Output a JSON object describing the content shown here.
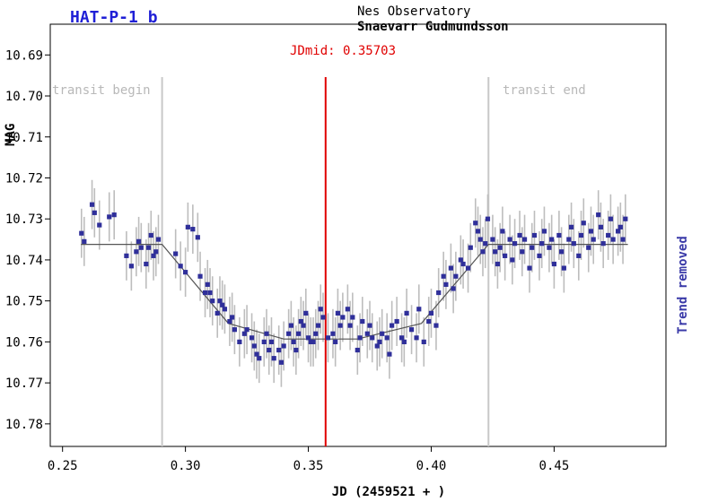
{
  "header": {
    "target": "HAT-P-1 b",
    "observatory": "Nes Observatory",
    "observer": "Snaevarr Gudmundsson",
    "jdmid_label": "JDmid: 0.35703",
    "transit_begin_label": "transit begin",
    "transit_end_label": "transit end",
    "trend_label": "Trend removed"
  },
  "colors": {
    "target": "#1f1fd6",
    "points": "#2f2f9a",
    "errorbars": "#bdbdbd",
    "model": "#555555",
    "jdmid": "#e00000",
    "transit_lines": "#c8c8c8",
    "transit_text": "#b8b8b8",
    "trend": "#3a3aa8"
  },
  "chart_data": {
    "type": "scatter",
    "xlabel": "JD (2459521 + )",
    "ylabel": "MAG",
    "xlim": [
      0.245,
      0.4955
    ],
    "ylim": [
      10.6825,
      10.7855
    ],
    "y_inverted": true,
    "xticks": [
      0.25,
      0.3,
      0.35,
      0.4,
      0.45
    ],
    "xtick_labels": [
      "0.25",
      "0.30",
      "0.35",
      "0.40",
      "0.45"
    ],
    "yticks": [
      10.69,
      10.7,
      10.71,
      10.72,
      10.73,
      10.74,
      10.75,
      10.76,
      10.77,
      10.78
    ],
    "ytick_labels": [
      "10.69",
      "10.70",
      "10.71",
      "10.72",
      "10.73",
      "10.74",
      "10.75",
      "10.76",
      "10.77",
      "10.78"
    ],
    "jd_mid": 0.35703,
    "transit_begin": 0.2905,
    "transit_end": 0.4233,
    "errorbar": 0.006,
    "model_line": {
      "x": [
        0.2575,
        0.2905,
        0.3175,
        0.34,
        0.37,
        0.396,
        0.4233,
        0.48
      ],
      "y": [
        10.7362,
        10.7362,
        10.7555,
        10.7593,
        10.7593,
        10.7555,
        10.7362,
        10.7362
      ]
    },
    "series": [
      {
        "x": [
          0.2577,
          0.2588,
          0.262,
          0.263,
          0.265,
          0.269,
          0.271,
          0.276,
          0.278,
          0.28,
          0.281,
          0.282,
          0.284,
          0.285,
          0.286,
          0.287,
          0.288,
          0.289,
          0.296,
          0.298,
          0.3,
          0.301,
          0.303,
          0.305,
          0.306,
          0.308,
          0.309,
          0.31,
          0.311,
          0.313,
          0.314,
          0.315,
          0.316,
          0.318,
          0.319,
          0.32,
          0.322,
          0.324,
          0.325,
          0.327,
          0.328,
          0.329,
          0.33,
          0.332,
          0.333,
          0.334,
          0.335,
          0.336,
          0.338,
          0.339,
          0.34,
          0.342,
          0.343,
          0.344,
          0.345,
          0.346,
          0.347,
          0.348,
          0.349,
          0.35,
          0.351,
          0.352,
          0.353,
          0.354,
          0.355,
          0.356,
          0.358,
          0.36,
          0.361,
          0.362,
          0.363,
          0.364,
          0.366,
          0.367,
          0.368,
          0.37,
          0.371,
          0.372,
          0.374,
          0.375,
          0.376,
          0.378,
          0.379,
          0.38,
          0.382,
          0.383,
          0.384,
          0.386,
          0.388,
          0.389,
          0.39,
          0.392,
          0.394,
          0.395,
          0.397,
          0.399,
          0.4,
          0.402,
          0.403,
          0.405,
          0.406,
          0.408,
          0.409,
          0.41,
          0.412,
          0.413,
          0.415,
          0.416,
          0.418,
          0.419,
          0.42,
          0.421,
          0.422,
          0.423,
          0.425,
          0.426,
          0.427,
          0.428,
          0.429,
          0.43,
          0.432,
          0.433,
          0.434,
          0.436,
          0.437,
          0.438,
          0.44,
          0.441,
          0.442,
          0.444,
          0.445,
          0.446,
          0.448,
          0.449,
          0.45,
          0.452,
          0.453,
          0.454,
          0.456,
          0.457,
          0.458,
          0.46,
          0.461,
          0.462,
          0.464,
          0.465,
          0.466,
          0.468,
          0.469,
          0.47,
          0.472,
          0.473,
          0.474,
          0.476,
          0.477,
          0.478,
          0.479
        ],
        "y": [
          10.7335,
          10.7355,
          10.7265,
          10.7285,
          10.7315,
          10.7295,
          10.729,
          10.739,
          10.7415,
          10.738,
          10.7355,
          10.737,
          10.741,
          10.737,
          10.734,
          10.739,
          10.738,
          10.735,
          10.7385,
          10.7415,
          10.743,
          10.732,
          10.7325,
          10.7345,
          10.744,
          10.748,
          10.746,
          10.748,
          10.75,
          10.753,
          10.75,
          10.751,
          10.752,
          10.755,
          10.754,
          10.757,
          10.76,
          10.758,
          10.757,
          10.759,
          10.761,
          10.763,
          10.764,
          10.76,
          10.758,
          10.762,
          10.76,
          10.764,
          10.762,
          10.765,
          10.761,
          10.758,
          10.756,
          10.76,
          10.762,
          10.758,
          10.755,
          10.756,
          10.753,
          10.759,
          10.76,
          10.76,
          10.758,
          10.756,
          10.752,
          10.754,
          10.759,
          10.758,
          10.76,
          10.753,
          10.756,
          10.754,
          10.752,
          10.756,
          10.754,
          10.762,
          10.759,
          10.755,
          10.758,
          10.756,
          10.759,
          10.761,
          10.76,
          10.758,
          10.759,
          10.763,
          10.756,
          10.755,
          10.759,
          10.76,
          10.753,
          10.757,
          10.759,
          10.752,
          10.76,
          10.755,
          10.753,
          10.756,
          10.748,
          10.744,
          10.746,
          10.742,
          10.747,
          10.744,
          10.74,
          10.741,
          10.742,
          10.737,
          10.731,
          10.733,
          10.735,
          10.738,
          10.736,
          10.73,
          10.735,
          10.738,
          10.741,
          10.737,
          10.733,
          10.739,
          10.735,
          10.74,
          10.736,
          10.734,
          10.738,
          10.735,
          10.742,
          10.737,
          10.734,
          10.739,
          10.736,
          10.733,
          10.737,
          10.735,
          10.741,
          10.734,
          10.738,
          10.742,
          10.735,
          10.732,
          10.736,
          10.739,
          10.734,
          10.731,
          10.737,
          10.733,
          10.735,
          10.729,
          10.732,
          10.736,
          10.734,
          10.73,
          10.735,
          10.733,
          10.732,
          10.735,
          10.73
        ]
      }
    ]
  }
}
